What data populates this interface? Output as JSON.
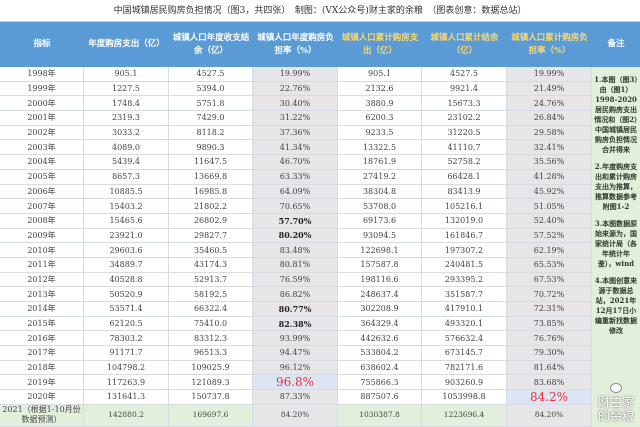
{
  "title": "中国城镇居民购房负担情况（图3，共四张）　制图：(VX公众号)财主家的余粮　（图表创意：数据总站）",
  "headers": [
    "指标",
    "年度购房支出（亿）",
    "城镇人口年度收支结余（亿）",
    "城镇人口年度购房负担率（%）",
    "城镇人口累计购房支出（亿）",
    "城镇人口累计结余（亿）",
    "城镇人口累计购房负担率（%）",
    "备注"
  ],
  "colors": {
    "header_bg": "#5b9bd5",
    "header_yellow": "#ffd966",
    "gray_col": "#e7e6e6",
    "forecast_bg": "#e2efda",
    "highlight_red": "#e8323c"
  },
  "rows": [
    [
      "1998年",
      "905.1",
      "4527.5",
      "19.99%",
      "905.1",
      "4527.5",
      "19.99%"
    ],
    [
      "1999年",
      "1227.5",
      "5394.0",
      "22.76%",
      "2132.6",
      "9921.4",
      "21.49%"
    ],
    [
      "2000年",
      "1748.4",
      "5751.8",
      "30.40%",
      "3880.9",
      "15673.3",
      "24.76%"
    ],
    [
      "2001年",
      "2319.3",
      "7429.0",
      "31.22%",
      "6200.3",
      "23102.2",
      "26.84%"
    ],
    [
      "2002年",
      "3033.2",
      "8118.2",
      "37.36%",
      "9233.5",
      "31220.5",
      "29.58%"
    ],
    [
      "2003年",
      "4089.0",
      "9890.3",
      "41.34%",
      "13322.5",
      "41110.7",
      "32.41%"
    ],
    [
      "2004年",
      "5439.4",
      "11647.5",
      "46.70%",
      "18761.9",
      "52758.2",
      "35.56%"
    ],
    [
      "2005年",
      "8657.3",
      "13669.8",
      "63.33%",
      "27419.2",
      "66428.1",
      "41.28%"
    ],
    [
      "2006年",
      "10885.5",
      "16985.8",
      "64.09%",
      "38304.8",
      "83413.9",
      "45.92%"
    ],
    [
      "2007年",
      "15403.2",
      "21802.2",
      "70.65%",
      "53708.0",
      "105216.1",
      "51.05%"
    ],
    [
      "2008年",
      "15465.6",
      "26802.9",
      "57.70%",
      "69173.6",
      "132019.0",
      "52.40%"
    ],
    [
      "2009年",
      "23921.0",
      "29827.7",
      "80.20%",
      "93094.5",
      "161846.7",
      "57.52%"
    ],
    [
      "2010年",
      "29603.6",
      "35460.5",
      "83.48%",
      "122698.1",
      "197307.2",
      "62.19%"
    ],
    [
      "2011年",
      "34889.7",
      "43174.3",
      "80.81%",
      "157587.8",
      "240481.5",
      "65.53%"
    ],
    [
      "2012年",
      "40528.8",
      "52913.7",
      "76.59%",
      "198116.6",
      "293395.2",
      "67.53%"
    ],
    [
      "2013年",
      "50520.9",
      "58192.5",
      "86.82%",
      "248637.4",
      "351587.7",
      "70.72%"
    ],
    [
      "2014年",
      "53571.4",
      "66322.4",
      "80.77%",
      "302208.9",
      "417910.1",
      "72.31%"
    ],
    [
      "2015年",
      "62120.5",
      "75410.0",
      "82.38%",
      "364329.4",
      "493320.1",
      "73.85%"
    ],
    [
      "2016年",
      "78303.2",
      "83312.3",
      "93.99%",
      "442632.6",
      "576632.4",
      "76.76%"
    ],
    [
      "2017年",
      "91171.7",
      "96513.3",
      "94.47%",
      "533804.2",
      "673145.7",
      "79.30%"
    ],
    [
      "2018年",
      "104798.2",
      "109025.9",
      "96.12%",
      "638602.4",
      "782171.6",
      "81.64%"
    ],
    [
      "2019年",
      "117263.9",
      "121089.3",
      "96.8%",
      "755866.3",
      "903260.9",
      "83.68%"
    ],
    [
      "2020年",
      "131641.3",
      "150737.8",
      "87.33%",
      "887507.6",
      "1053998.8",
      "84.2%"
    ],
    [
      "2021（根据1-10月份数据预测）",
      "142880.2",
      "169697.6",
      "84.20%",
      "1030387.8",
      "1223696.4",
      "84.20%"
    ]
  ],
  "bold_cells": [
    "10-3",
    "11-3",
    "16-3",
    "17-3"
  ],
  "red_cells": [
    "21-3",
    "22-6"
  ],
  "notes": [
    "1.本图（图3）由（图1）1998-2020居民购房支出情况和（图2）中国城镇居民购房负担情况合并得来",
    "2.年度购房支出和累计购房支出为推算，推算数据参考附图1-2",
    "3.本图数据原始来源为，国家统计局（各年统计年鉴），wind",
    "4.本图创意来源于数据总站，2021年12月17日小编重新找数据修改"
  ],
  "watermark": "财主家的余粮"
}
